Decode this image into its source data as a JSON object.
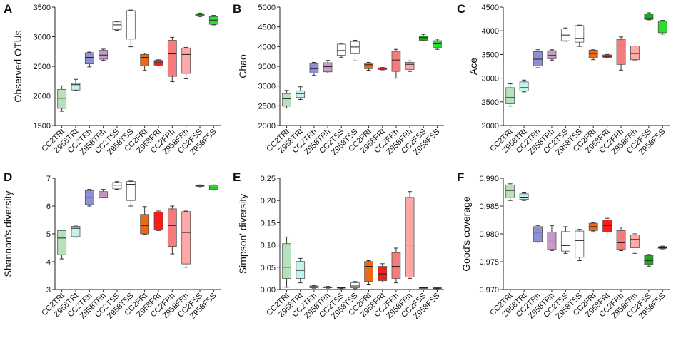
{
  "figure": {
    "categories": [
      "CC2TRt",
      "Z958TRt",
      "CC2TRh",
      "Z958TRh",
      "CC2TSS",
      "Z958TSS",
      "CC2FRt",
      "Z958FRt",
      "CC2FRh",
      "Z958FRh",
      "CC2FSS",
      "Z958FSS"
    ],
    "colors": [
      "#b6e2bb",
      "#c6f2ee",
      "#8e90d6",
      "#c79ac9",
      "#ffffff",
      "#ffffff",
      "#ee6a12",
      "#ff1a1a",
      "#f47c7c",
      "#ffa8a8",
      "#1aaa1a",
      "#2ddf2d"
    ]
  },
  "chart_data": [
    {
      "type": "boxplot",
      "letter": "A",
      "ylabel": "Observed OTUs",
      "ylim": [
        1500,
        3500
      ],
      "yticks": [
        1500,
        2000,
        2500,
        3000,
        3500
      ],
      "boxes": [
        {
          "min": 1740,
          "q1": 1790,
          "median": 1960,
          "q3": 2110,
          "max": 2170
        },
        {
          "min": 2090,
          "q1": 2100,
          "median": 2190,
          "q3": 2210,
          "max": 2280
        },
        {
          "min": 2490,
          "q1": 2540,
          "median": 2650,
          "q3": 2730,
          "max": 2740
        },
        {
          "min": 2600,
          "q1": 2620,
          "median": 2690,
          "q3": 2770,
          "max": 2790
        },
        {
          "min": 3110,
          "q1": 3120,
          "median": 3200,
          "q3": 3250,
          "max": 3260
        },
        {
          "min": 2830,
          "q1": 2960,
          "median": 3350,
          "q3": 3440,
          "max": 3450
        },
        {
          "min": 2430,
          "q1": 2510,
          "median": 2650,
          "q3": 2700,
          "max": 2720
        },
        {
          "min": 2510,
          "q1": 2520,
          "median": 2560,
          "q3": 2600,
          "max": 2610
        },
        {
          "min": 2240,
          "q1": 2330,
          "median": 2710,
          "q3": 2940,
          "max": 2990
        },
        {
          "min": 2290,
          "q1": 2380,
          "median": 2700,
          "q3": 2810,
          "max": 2820
        },
        {
          "min": 3340,
          "q1": 3355,
          "median": 3380,
          "q3": 3390,
          "max": 3400
        },
        {
          "min": 3200,
          "q1": 3210,
          "median": 3280,
          "q3": 3340,
          "max": 3360
        }
      ]
    },
    {
      "type": "boxplot",
      "letter": "B",
      "ylabel": "Chao",
      "ylim": [
        2000,
        5000
      ],
      "yticks": [
        2000,
        2500,
        3000,
        3500,
        4000,
        4500,
        5000
      ],
      "boxes": [
        {
          "min": 2440,
          "q1": 2490,
          "median": 2680,
          "q3": 2810,
          "max": 2890
        },
        {
          "min": 2660,
          "q1": 2710,
          "median": 2810,
          "q3": 2880,
          "max": 2980
        },
        {
          "min": 3270,
          "q1": 3330,
          "median": 3440,
          "q3": 3570,
          "max": 3600
        },
        {
          "min": 3330,
          "q1": 3360,
          "median": 3490,
          "q3": 3590,
          "max": 3650
        },
        {
          "min": 3720,
          "q1": 3780,
          "median": 3900,
          "q3": 4060,
          "max": 4080
        },
        {
          "min": 3640,
          "q1": 3820,
          "median": 3990,
          "q3": 4130,
          "max": 4160
        },
        {
          "min": 3400,
          "q1": 3440,
          "median": 3540,
          "q3": 3580,
          "max": 3600
        },
        {
          "min": 3410,
          "q1": 3420,
          "median": 3450,
          "q3": 3460,
          "max": 3470
        },
        {
          "min": 3200,
          "q1": 3370,
          "median": 3660,
          "q3": 3880,
          "max": 3930
        },
        {
          "min": 3370,
          "q1": 3420,
          "median": 3550,
          "q3": 3600,
          "max": 3640
        },
        {
          "min": 4150,
          "q1": 4160,
          "median": 4230,
          "q3": 4270,
          "max": 4310
        },
        {
          "min": 3930,
          "q1": 3970,
          "median": 4070,
          "q3": 4150,
          "max": 4190
        }
      ]
    },
    {
      "type": "boxplot",
      "letter": "C",
      "ylabel": "Ace",
      "ylim": [
        2000,
        4500
      ],
      "yticks": [
        2000,
        2500,
        3000,
        3500,
        4000,
        4500
      ],
      "boxes": [
        {
          "min": 2410,
          "q1": 2460,
          "median": 2590,
          "q3": 2800,
          "max": 2880
        },
        {
          "min": 2710,
          "q1": 2730,
          "median": 2800,
          "q3": 2920,
          "max": 2960
        },
        {
          "min": 3220,
          "q1": 3260,
          "median": 3400,
          "q3": 3560,
          "max": 3600
        },
        {
          "min": 3380,
          "q1": 3410,
          "median": 3480,
          "q3": 3580,
          "max": 3600
        },
        {
          "min": 3780,
          "q1": 3790,
          "median": 3910,
          "q3": 4040,
          "max": 4060
        },
        {
          "min": 3670,
          "q1": 3760,
          "median": 3840,
          "q3": 4110,
          "max": 4120
        },
        {
          "min": 3390,
          "q1": 3430,
          "median": 3520,
          "q3": 3590,
          "max": 3600
        },
        {
          "min": 3430,
          "q1": 3440,
          "median": 3460,
          "q3": 3490,
          "max": 3500
        },
        {
          "min": 3170,
          "q1": 3290,
          "median": 3680,
          "q3": 3820,
          "max": 3870
        },
        {
          "min": 3370,
          "q1": 3390,
          "median": 3520,
          "q3": 3680,
          "max": 3740
        },
        {
          "min": 4230,
          "q1": 4240,
          "median": 4260,
          "q3": 4360,
          "max": 4380
        },
        {
          "min": 3930,
          "q1": 3960,
          "median": 4100,
          "q3": 4200,
          "max": 4220
        }
      ]
    },
    {
      "type": "boxplot",
      "letter": "D",
      "ylabel": "Shannon's diversity",
      "ylim": [
        3,
        7
      ],
      "yticks": [
        3,
        4,
        5,
        6,
        7
      ],
      "boxes": [
        {
          "min": 4.1,
          "q1": 4.25,
          "median": 4.85,
          "q3": 5.12,
          "max": 5.14
        },
        {
          "min": 4.88,
          "q1": 4.9,
          "median": 5.2,
          "q3": 5.27,
          "max": 5.28
        },
        {
          "min": 6.0,
          "q1": 6.05,
          "median": 6.3,
          "q3": 6.56,
          "max": 6.6
        },
        {
          "min": 6.3,
          "q1": 6.32,
          "median": 6.4,
          "q3": 6.52,
          "max": 6.6
        },
        {
          "min": 6.6,
          "q1": 6.62,
          "median": 6.75,
          "q3": 6.85,
          "max": 6.88
        },
        {
          "min": 6.0,
          "q1": 6.2,
          "median": 6.78,
          "q3": 6.88,
          "max": 6.9
        },
        {
          "min": 4.98,
          "q1": 5.0,
          "median": 5.3,
          "q3": 5.7,
          "max": 5.98
        },
        {
          "min": 5.12,
          "q1": 5.14,
          "median": 5.42,
          "q3": 5.78,
          "max": 5.82
        },
        {
          "min": 4.28,
          "q1": 4.55,
          "median": 5.3,
          "q3": 5.9,
          "max": 6.0
        },
        {
          "min": 3.8,
          "q1": 3.92,
          "median": 5.05,
          "q3": 5.8,
          "max": 5.82
        },
        {
          "min": 6.7,
          "q1": 6.71,
          "median": 6.74,
          "q3": 6.76,
          "max": 6.76
        },
        {
          "min": 6.58,
          "q1": 6.6,
          "median": 6.66,
          "q3": 6.75,
          "max": 6.76
        }
      ]
    },
    {
      "type": "boxplot",
      "letter": "E",
      "ylabel": "Simpson' diversity",
      "ylim": [
        0,
        0.25
      ],
      "yticks": [
        "0.00",
        "0.05",
        "0.10",
        "0.15",
        "0.20",
        "0.25"
      ],
      "boxes": [
        {
          "min": 0.005,
          "q1": 0.025,
          "median": 0.05,
          "q3": 0.103,
          "max": 0.118
        },
        {
          "min": 0.015,
          "q1": 0.025,
          "median": 0.043,
          "q3": 0.063,
          "max": 0.07
        },
        {
          "min": 0.003,
          "q1": 0.004,
          "median": 0.006,
          "q3": 0.008,
          "max": 0.009
        },
        {
          "min": 0.003,
          "q1": 0.004,
          "median": 0.005,
          "q3": 0.006,
          "max": 0.007
        },
        {
          "min": 0.002,
          "q1": 0.003,
          "median": 0.004,
          "q3": 0.005,
          "max": 0.005
        },
        {
          "min": 0.002,
          "q1": 0.004,
          "median": 0.008,
          "q3": 0.015,
          "max": 0.018
        },
        {
          "min": 0.012,
          "q1": 0.018,
          "median": 0.052,
          "q3": 0.063,
          "max": 0.065
        },
        {
          "min": 0.017,
          "q1": 0.02,
          "median": 0.035,
          "q3": 0.052,
          "max": 0.058
        },
        {
          "min": 0.015,
          "q1": 0.025,
          "median": 0.052,
          "q3": 0.083,
          "max": 0.093
        },
        {
          "min": 0.025,
          "q1": 0.028,
          "median": 0.1,
          "q3": 0.207,
          "max": 0.22
        },
        {
          "min": 0.003,
          "q1": 0.003,
          "median": 0.004,
          "q3": 0.004,
          "max": 0.004
        },
        {
          "min": 0.002,
          "q1": 0.003,
          "median": 0.003,
          "q3": 0.004,
          "max": 0.004
        }
      ]
    },
    {
      "type": "boxplot",
      "letter": "F",
      "ylabel": "Good's coverage",
      "ylim": [
        0.97,
        0.99
      ],
      "yticks": [
        "0.970",
        "0.975",
        "0.980",
        "0.985",
        "0.990"
      ],
      "boxes": [
        {
          "min": 0.986,
          "q1": 0.9865,
          "median": 0.9878,
          "q3": 0.9888,
          "max": 0.989
        },
        {
          "min": 0.986,
          "q1": 0.9862,
          "median": 0.9866,
          "q3": 0.9872,
          "max": 0.9875
        },
        {
          "min": 0.9785,
          "q1": 0.9786,
          "median": 0.9803,
          "q3": 0.9813,
          "max": 0.9815
        },
        {
          "min": 0.977,
          "q1": 0.9772,
          "median": 0.9789,
          "q3": 0.9803,
          "max": 0.9815
        },
        {
          "min": 0.9765,
          "q1": 0.9769,
          "median": 0.9779,
          "q3": 0.9804,
          "max": 0.9813
        },
        {
          "min": 0.9752,
          "q1": 0.9758,
          "median": 0.9788,
          "q3": 0.9805,
          "max": 0.9808
        },
        {
          "min": 0.9805,
          "q1": 0.9806,
          "median": 0.9813,
          "q3": 0.9819,
          "max": 0.982
        },
        {
          "min": 0.9798,
          "q1": 0.9803,
          "median": 0.9815,
          "q3": 0.9825,
          "max": 0.9828
        },
        {
          "min": 0.977,
          "q1": 0.9772,
          "median": 0.9784,
          "q3": 0.9806,
          "max": 0.9812
        },
        {
          "min": 0.9765,
          "q1": 0.9775,
          "median": 0.979,
          "q3": 0.9798,
          "max": 0.98
        },
        {
          "min": 0.9742,
          "q1": 0.9745,
          "median": 0.9752,
          "q3": 0.9761,
          "max": 0.9763
        },
        {
          "min": 0.9773,
          "q1": 0.9774,
          "median": 0.9775,
          "q3": 0.9777,
          "max": 0.9778
        }
      ]
    }
  ]
}
